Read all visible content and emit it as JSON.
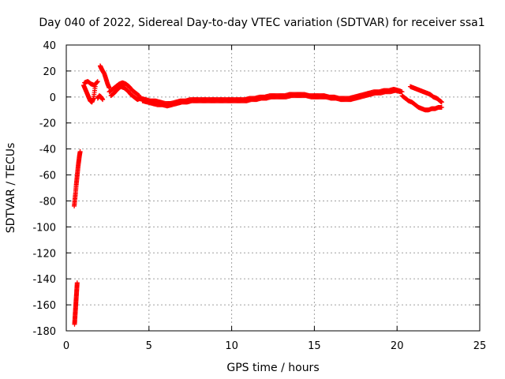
{
  "chart_data": {
    "type": "scatter",
    "title": "Day 040 of 2022, Sidereal Day-to-day VTEC variation (SDTVAR) for receiver ssa1",
    "xlabel": "GPS time / hours",
    "ylabel": "SDTVAR / TECUs",
    "xlim": [
      0,
      25
    ],
    "ylim": [
      -180,
      40
    ],
    "xticks": [
      0,
      5,
      10,
      15,
      20,
      25
    ],
    "yticks": [
      40,
      20,
      0,
      -20,
      -40,
      -60,
      -80,
      -100,
      -120,
      -140,
      -160,
      -180
    ],
    "grid": true,
    "marker": "plus",
    "color": "#ff0000",
    "series": [
      {
        "name": "SDTVAR",
        "segments": [
          {
            "x": [
              0.48,
              0.52,
              0.56,
              0.6,
              0.64,
              0.68,
              0.72,
              0.76,
              0.8,
              0.84
            ],
            "y": [
              -84,
              -79,
              -74,
              -68,
              -63,
              -58,
              -53,
              -49,
              -45,
              -42
            ]
          },
          {
            "x": [
              0.5,
              0.52,
              0.54,
              0.56,
              0.58,
              0.6,
              0.62,
              0.64,
              0.66
            ],
            "y": [
              -175,
              -171,
              -167,
              -163,
              -159,
              -155,
              -151,
              -147,
              -143
            ]
          },
          {
            "x": [
              1.05,
              1.15,
              1.25,
              1.35,
              1.45,
              1.55,
              1.65,
              1.75
            ],
            "y": [
              9,
              6,
              3,
              0,
              -3,
              -4,
              -1,
              8
            ]
          },
          {
            "x": [
              1.1,
              1.3,
              1.5,
              1.7,
              1.9
            ],
            "y": [
              11,
              12,
              10,
              9,
              12
            ]
          },
          {
            "x": [
              1.9,
              2.0,
              2.1,
              2.2
            ],
            "y": [
              -1,
              1,
              0,
              -2
            ]
          },
          {
            "x": [
              2.05,
              2.12,
              2.2,
              2.3,
              2.4,
              2.5,
              2.6
            ],
            "y": [
              24,
              22,
              20,
              18,
              14,
              10,
              7
            ]
          },
          {
            "x": [
              2.6,
              2.8,
              3.0,
              3.2,
              3.4,
              3.6,
              3.8,
              4.0,
              4.2,
              4.4
            ],
            "y": [
              4,
              6,
              8,
              10,
              11,
              10,
              8,
              5,
              3,
              1
            ]
          },
          {
            "x": [
              2.7,
              2.9,
              3.1,
              3.3,
              3.5,
              3.7,
              3.9,
              4.1,
              4.3,
              4.5
            ],
            "y": [
              1,
              3,
              6,
              8,
              7,
              5,
              2,
              0,
              -2,
              -1
            ]
          },
          {
            "x": [
              4.5,
              4.8,
              5.1,
              5.4,
              5.7,
              6.0,
              6.3,
              6.6,
              6.9,
              7.2,
              7.5,
              7.8,
              8.1,
              8.4,
              8.7,
              9.0,
              9.3,
              9.6,
              9.9,
              10.2,
              10.5,
              10.8,
              11.1,
              11.4,
              11.7,
              12.0,
              12.3,
              12.6,
              12.9,
              13.2,
              13.5,
              13.8,
              14.1,
              14.4,
              14.7,
              15.0,
              15.3,
              15.6,
              15.9,
              16.2,
              16.5,
              16.8,
              17.1,
              17.4,
              17.7,
              18.0,
              18.3,
              18.6,
              18.9,
              19.2,
              19.5,
              19.8,
              20.1,
              20.3
            ],
            "y": [
              -1,
              -2,
              -3,
              -3,
              -4,
              -5,
              -5,
              -4,
              -3,
              -3,
              -2,
              -2,
              -2,
              -2,
              -2,
              -2,
              -2,
              -2,
              -2,
              -2,
              -2,
              -2,
              -1,
              -1,
              0,
              0,
              1,
              1,
              1,
              1,
              2,
              2,
              2,
              2,
              1,
              1,
              1,
              1,
              0,
              0,
              -1,
              -1,
              -1,
              0,
              1,
              2,
              3,
              4,
              4,
              5,
              5,
              6,
              5,
              4
            ]
          },
          {
            "x": [
              4.6,
              4.9,
              5.2,
              5.5,
              5.8,
              6.1,
              6.4,
              6.7,
              7.0,
              7.3,
              7.6,
              7.9,
              8.2,
              8.5,
              8.8,
              9.1,
              9.4,
              9.7,
              10.0,
              10.3,
              10.6,
              10.9,
              11.2,
              11.5,
              11.8,
              12.1,
              12.4,
              12.7,
              13.0,
              13.3,
              13.6,
              13.9,
              14.2,
              14.5,
              14.8,
              15.1,
              15.4,
              15.7,
              16.0,
              16.3,
              16.6,
              16.9,
              17.2,
              17.5,
              17.8,
              18.1,
              18.4,
              18.7,
              19.0,
              19.3,
              19.6,
              19.9,
              20.2
            ],
            "y": [
              -3,
              -4,
              -5,
              -6,
              -6,
              -7,
              -6,
              -5,
              -4,
              -4,
              -3,
              -3,
              -3,
              -3,
              -3,
              -3,
              -3,
              -3,
              -3,
              -3,
              -3,
              -3,
              -2,
              -2,
              -1,
              -1,
              0,
              0,
              0,
              0,
              1,
              1,
              1,
              1,
              0,
              0,
              0,
              0,
              -1,
              -1,
              -2,
              -2,
              -2,
              -1,
              0,
              1,
              2,
              3,
              3,
              4,
              4,
              5,
              4
            ]
          },
          {
            "x": [
              20.3,
              20.5,
              20.7,
              20.9,
              21.1,
              21.3,
              21.5,
              21.7,
              21.9,
              22.1,
              22.3,
              22.5,
              22.7
            ],
            "y": [
              1,
              -1,
              -3,
              -4,
              -6,
              -8,
              -9,
              -10,
              -10,
              -9,
              -9,
              -8,
              -8
            ]
          },
          {
            "x": [
              20.8,
              21.0,
              21.2,
              21.4,
              21.6,
              21.8,
              22.0,
              22.2,
              22.4,
              22.6,
              22.7
            ],
            "y": [
              8,
              7,
              6,
              5,
              4,
              3,
              2,
              0,
              -1,
              -3,
              -4
            ]
          }
        ]
      }
    ]
  }
}
